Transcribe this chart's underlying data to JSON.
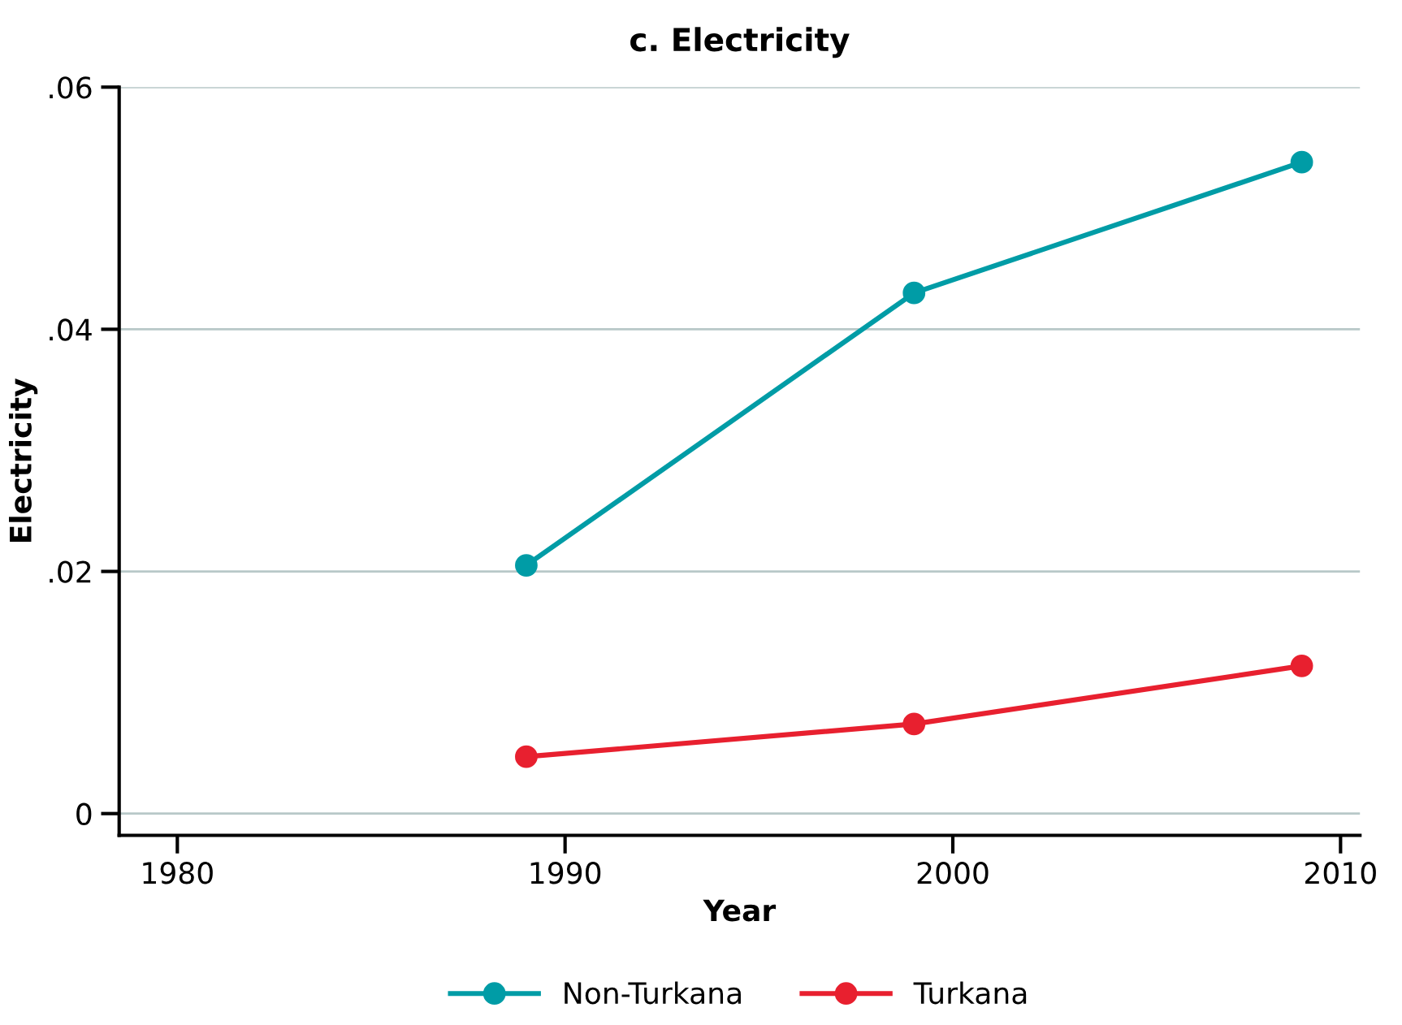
{
  "chart_data": {
    "type": "line",
    "title": "c. Electricity",
    "xlabel": "Year",
    "ylabel": "Electricity",
    "x": [
      1989,
      1999,
      2009
    ],
    "series": [
      {
        "name": "Non-Turkana",
        "color": "#009ca6",
        "values": [
          0.0205,
          0.043,
          0.0538
        ]
      },
      {
        "name": "Turkana",
        "color": "#e8202f",
        "values": [
          0.0047,
          0.0074,
          0.0122
        ]
      }
    ],
    "xlim": [
      1978.5,
      2010.5
    ],
    "xticks": [
      1980,
      1990,
      2000,
      2010
    ],
    "ylim": [
      -0.0018,
      0.06
    ],
    "yticks": [
      {
        "value": 0,
        "label": "0"
      },
      {
        "value": 0.02,
        "label": ".02"
      },
      {
        "value": 0.04,
        "label": ".04"
      },
      {
        "value": 0.06,
        "label": ".06"
      }
    ],
    "grid": "y",
    "legend": "bottom",
    "marker": "circle",
    "line_style": "solid"
  }
}
